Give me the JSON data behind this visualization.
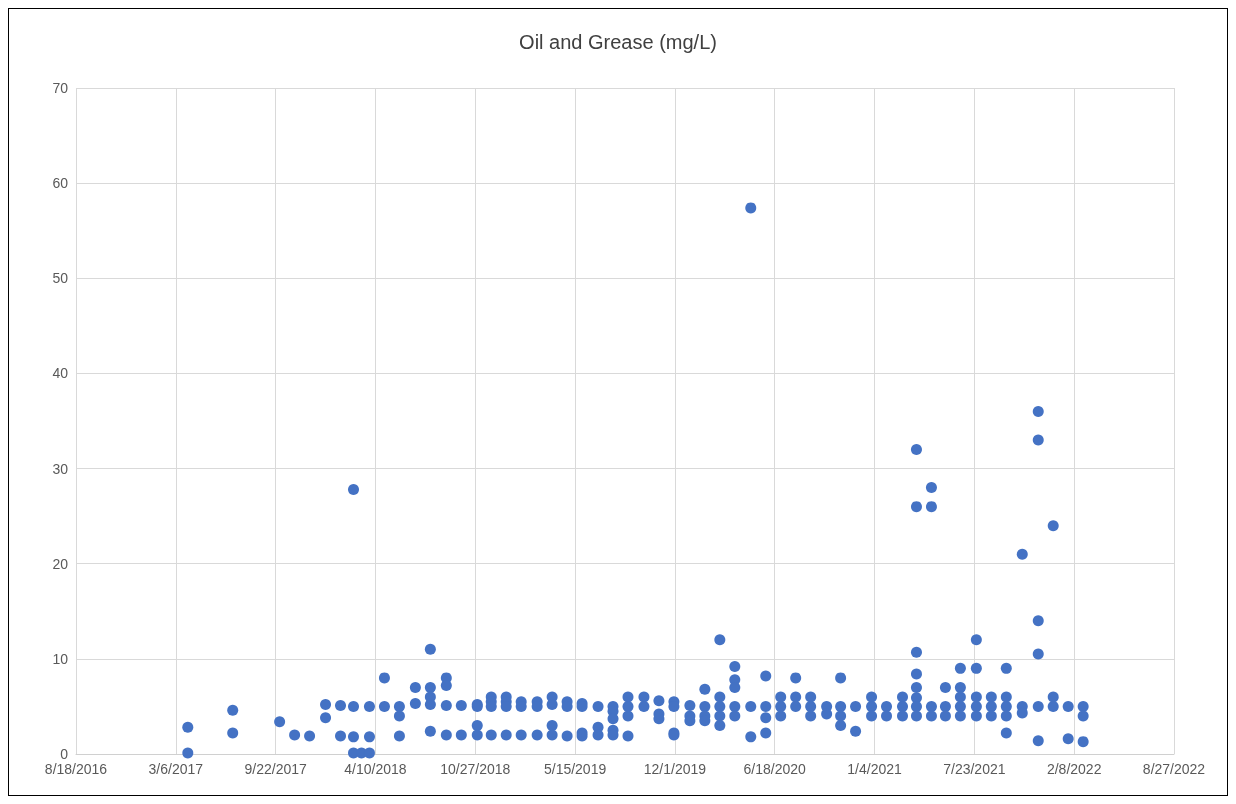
{
  "chart_data": {
    "type": "scatter",
    "title": "Oil and Grease (mg/L)",
    "x": [
      "2017-03-30",
      "2017-03-30",
      "2017-06-28",
      "2017-06-28",
      "2017-09-30",
      "2017-10-30",
      "2017-11-29",
      "2017-12-31",
      "2017-12-31",
      "2018-01-30",
      "2018-01-30",
      "2018-02-25",
      "2018-02-25",
      "2018-02-25",
      "2018-02-25",
      "2018-03-13",
      "2018-03-29",
      "2018-03-29",
      "2018-03-29",
      "2018-04-28",
      "2018-04-28",
      "2018-05-28",
      "2018-05-28",
      "2018-05-28",
      "2018-06-29",
      "2018-06-29",
      "2018-07-29",
      "2018-07-29",
      "2018-07-29",
      "2018-07-29",
      "2018-07-29",
      "2018-08-30",
      "2018-08-30",
      "2018-08-30",
      "2018-08-30",
      "2018-09-29",
      "2018-09-29",
      "2018-10-31",
      "2018-10-31",
      "2018-10-31",
      "2018-10-31",
      "2018-11-28",
      "2018-11-28",
      "2018-11-28",
      "2018-11-28",
      "2018-12-28",
      "2018-12-28",
      "2018-12-28",
      "2018-12-28",
      "2019-01-27",
      "2019-01-27",
      "2019-01-27",
      "2019-02-28",
      "2019-02-28",
      "2019-02-28",
      "2019-03-30",
      "2019-03-30",
      "2019-03-30",
      "2019-03-30",
      "2019-04-29",
      "2019-04-29",
      "2019-04-29",
      "2019-05-29",
      "2019-05-29",
      "2019-05-29",
      "2019-05-29",
      "2019-06-30",
      "2019-06-30",
      "2019-06-30",
      "2019-07-30",
      "2019-07-30",
      "2019-07-30",
      "2019-07-30",
      "2019-07-30",
      "2019-08-29",
      "2019-08-29",
      "2019-08-29",
      "2019-08-29",
      "2019-09-30",
      "2019-09-30",
      "2019-10-30",
      "2019-10-30",
      "2019-10-30",
      "2019-11-29",
      "2019-11-29",
      "2019-11-29",
      "2019-11-29",
      "2019-12-31",
      "2019-12-31",
      "2019-12-31",
      "2020-01-30",
      "2020-01-30",
      "2020-01-30",
      "2020-01-30",
      "2020-02-29",
      "2020-02-29",
      "2020-02-29",
      "2020-02-29",
      "2020-02-29",
      "2020-03-30",
      "2020-03-30",
      "2020-03-30",
      "2020-03-30",
      "2020-03-30",
      "2020-05-01",
      "2020-05-01",
      "2020-05-01",
      "2020-05-31",
      "2020-05-31",
      "2020-05-31",
      "2020-05-31",
      "2020-06-30",
      "2020-06-30",
      "2020-06-30",
      "2020-07-30",
      "2020-07-30",
      "2020-07-30",
      "2020-08-29",
      "2020-08-29",
      "2020-08-29",
      "2020-09-30",
      "2020-09-30",
      "2020-10-28",
      "2020-10-28",
      "2020-10-28",
      "2020-10-28",
      "2020-11-27",
      "2020-11-27",
      "2020-12-29",
      "2020-12-29",
      "2020-12-29",
      "2021-01-28",
      "2021-01-28",
      "2021-03-01",
      "2021-03-01",
      "2021-03-01",
      "2021-03-29",
      "2021-03-29",
      "2021-03-29",
      "2021-03-29",
      "2021-03-29",
      "2021-03-29",
      "2021-03-29",
      "2021-03-29",
      "2021-04-28",
      "2021-04-28",
      "2021-04-28",
      "2021-04-28",
      "2021-05-26",
      "2021-05-26",
      "2021-05-26",
      "2021-06-25",
      "2021-06-25",
      "2021-06-25",
      "2021-06-25",
      "2021-06-25",
      "2021-07-27",
      "2021-07-27",
      "2021-07-27",
      "2021-07-27",
      "2021-07-27",
      "2021-08-26",
      "2021-08-26",
      "2021-08-26",
      "2021-09-25",
      "2021-09-25",
      "2021-09-25",
      "2021-09-25",
      "2021-09-25",
      "2021-10-27",
      "2021-10-27",
      "2021-10-27",
      "2021-11-28",
      "2021-11-28",
      "2021-11-28",
      "2021-11-28",
      "2021-11-28",
      "2021-11-28",
      "2021-12-28",
      "2021-12-28",
      "2021-12-28",
      "2022-01-27",
      "2022-01-27",
      "2022-02-26",
      "2022-02-26",
      "2022-02-26"
    ],
    "values": [
      2.8,
      0.1,
      4.6,
      2.2,
      3.4,
      2.0,
      1.9,
      5.2,
      3.8,
      5.1,
      1.9,
      27.8,
      5.0,
      1.8,
      0.1,
      0.1,
      5.0,
      1.8,
      0.1,
      8.0,
      5.0,
      5.0,
      4.0,
      1.9,
      7.0,
      5.3,
      11.0,
      7.0,
      6.0,
      5.2,
      2.4,
      8.0,
      7.2,
      5.1,
      2.0,
      5.1,
      2.0,
      5.2,
      5.0,
      3.0,
      2.0,
      6.0,
      5.5,
      5.0,
      2.0,
      6.0,
      5.5,
      5.0,
      2.0,
      5.5,
      5.0,
      2.0,
      5.5,
      5.0,
      2.0,
      6.0,
      5.2,
      3.0,
      2.0,
      5.5,
      5.0,
      1.9,
      5.3,
      5.0,
      2.2,
      1.9,
      5.0,
      2.8,
      2.0,
      5.0,
      4.5,
      3.7,
      2.5,
      2.0,
      6.0,
      5.0,
      4.0,
      1.9,
      6.0,
      5.0,
      5.6,
      4.2,
      3.7,
      5.5,
      5.0,
      2.2,
      2.0,
      5.1,
      4.0,
      3.5,
      6.8,
      5.0,
      4.0,
      3.5,
      12.0,
      6.0,
      5.0,
      4.0,
      3.0,
      9.2,
      7.8,
      7.0,
      5.0,
      4.0,
      57.4,
      5.0,
      1.8,
      8.2,
      5.0,
      3.8,
      2.2,
      6.0,
      5.0,
      4.0,
      8.0,
      6.0,
      5.0,
      6.0,
      5.0,
      4.0,
      5.0,
      4.2,
      8.0,
      5.0,
      4.0,
      3.0,
      5.0,
      2.4,
      6.0,
      5.0,
      4.0,
      5.0,
      4.0,
      6.0,
      5.0,
      4.0,
      32.0,
      26.0,
      10.7,
      8.4,
      7.0,
      5.9,
      5.0,
      4.0,
      28.0,
      26.0,
      5.0,
      4.0,
      7.0,
      5.0,
      4.0,
      9.0,
      7.0,
      6.0,
      5.0,
      4.0,
      12.0,
      9.0,
      6.0,
      5.0,
      4.0,
      6.0,
      5.0,
      4.0,
      9.0,
      6.0,
      5.0,
      4.0,
      2.2,
      21.0,
      5.0,
      4.3,
      36.0,
      33.0,
      14.0,
      10.5,
      5.0,
      1.4,
      24.0,
      6.0,
      5.0,
      5.0,
      1.6,
      5.0,
      4.0,
      1.3
    ],
    "color": "#4472c4",
    "marker": "circle",
    "grid": true,
    "xlim": [
      "2016-08-18",
      "2022-08-27"
    ],
    "xticks": [
      {
        "value": "2016-08-18",
        "label": "8/18/2016"
      },
      {
        "value": "2017-03-06",
        "label": "3/6/2017"
      },
      {
        "value": "2017-09-22",
        "label": "9/22/2017"
      },
      {
        "value": "2018-04-10",
        "label": "4/10/2018"
      },
      {
        "value": "2018-10-27",
        "label": "10/27/2018"
      },
      {
        "value": "2019-05-15",
        "label": "5/15/2019"
      },
      {
        "value": "2019-12-01",
        "label": "12/1/2019"
      },
      {
        "value": "2020-06-18",
        "label": "6/18/2020"
      },
      {
        "value": "2021-01-04",
        "label": "1/4/2021"
      },
      {
        "value": "2021-07-23",
        "label": "7/23/2021"
      },
      {
        "value": "2022-02-08",
        "label": "2/8/2022"
      },
      {
        "value": "2022-08-27",
        "label": "8/27/2022"
      }
    ],
    "ylim": [
      0,
      70
    ],
    "yticks": [
      0,
      10,
      20,
      30,
      40,
      50,
      60,
      70
    ]
  }
}
